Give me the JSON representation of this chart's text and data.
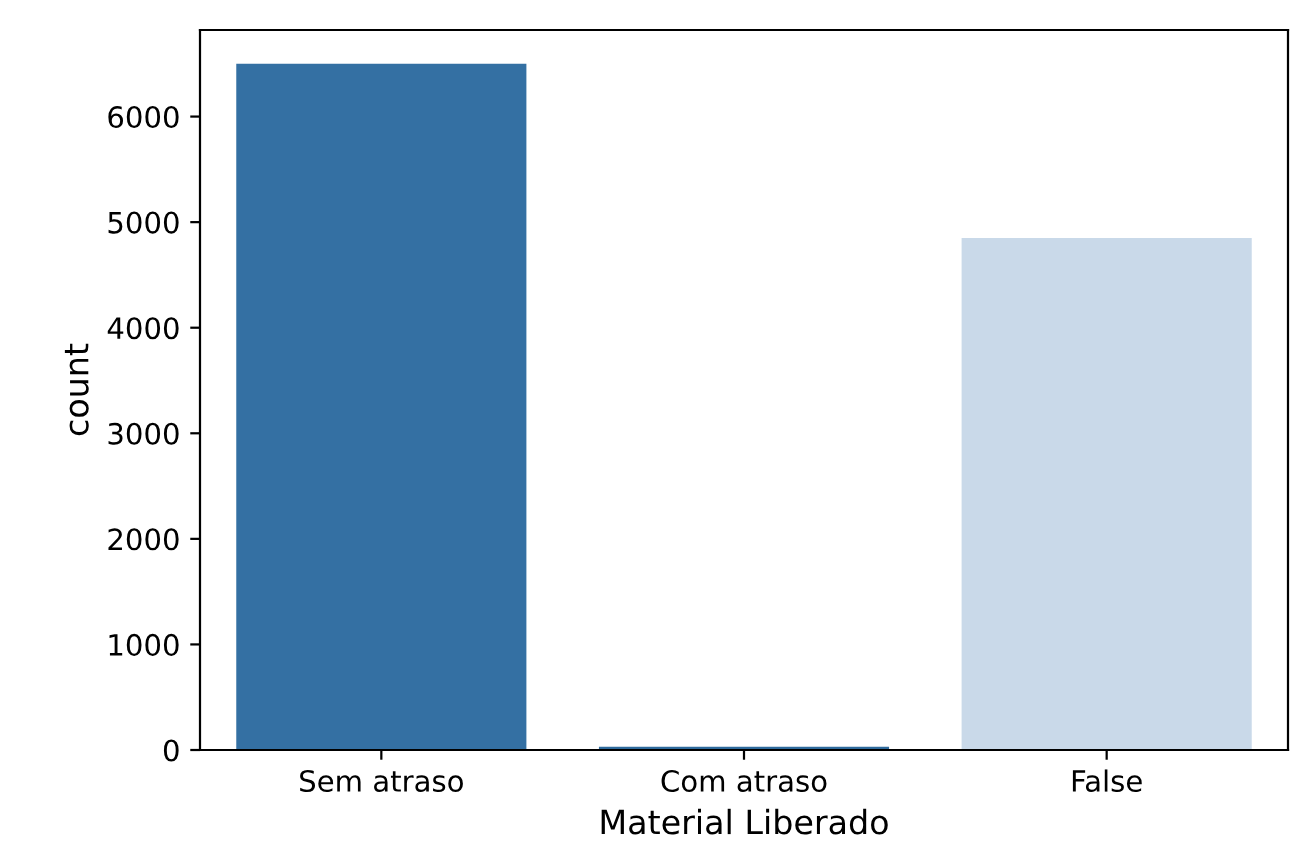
{
  "chart_data": {
    "type": "bar",
    "xlabel": "Material Liberado",
    "ylabel": "count",
    "categories": [
      "Sem atraso",
      "Com atraso",
      "False"
    ],
    "values": [
      6500,
      30,
      4850
    ],
    "colors": [
      "#3470a3",
      "#2e6a9c",
      "#c9d9e9"
    ],
    "ylim": [
      0,
      6820
    ],
    "yticks": [
      0,
      1000,
      2000,
      3000,
      4000,
      5000,
      6000
    ],
    "grid": false,
    "legend": false
  }
}
